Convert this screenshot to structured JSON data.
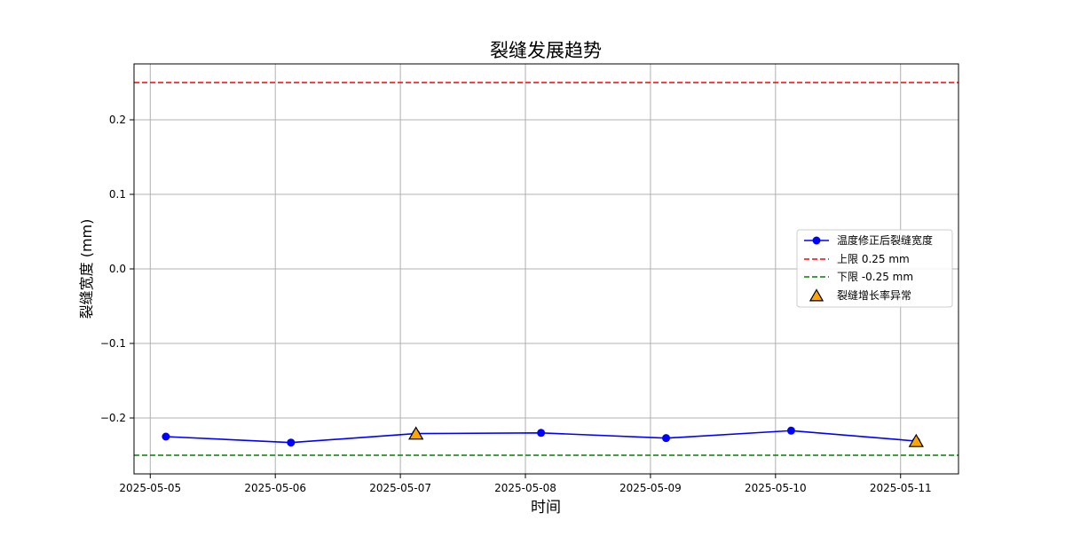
{
  "chart_data": {
    "type": "line",
    "title": "裂缝发展趋势",
    "xlabel": "时间",
    "ylabel": "裂缝宽度 (mm)",
    "xlim": [
      "2025-05-04 20:53",
      "2025-05-11 11:07"
    ],
    "ylim": [
      -0.275,
      0.275
    ],
    "x_ticks": [
      "2025-05-05",
      "2025-05-06",
      "2025-05-07",
      "2025-05-08",
      "2025-05-09",
      "2025-05-10",
      "2025-05-11"
    ],
    "y_ticks": [
      0.2,
      0.1,
      0.0,
      -0.1,
      -0.2
    ],
    "y_tick_labels": [
      "0.2",
      "0.1",
      "0.0",
      "−0.1",
      "−0.2"
    ],
    "grid": true,
    "legend_position": "right",
    "series": [
      {
        "name": "温度修正后裂缝宽度",
        "color": "#0000ff",
        "marker": "circle",
        "x": [
          "2025-05-05 03:00",
          "2025-05-06 03:00",
          "2025-05-07 03:00",
          "2025-05-08 03:00",
          "2025-05-09 03:00",
          "2025-05-10 03:00",
          "2025-05-11 03:00"
        ],
        "values": [
          -0.225,
          -0.233,
          -0.221,
          -0.22,
          -0.227,
          -0.217,
          -0.231
        ]
      }
    ],
    "reference_lines": [
      {
        "name": "上限 0.25 mm",
        "value": 0.25,
        "color": "#ff0000",
        "style": "dashed"
      },
      {
        "name": "下限 -0.25 mm",
        "value": -0.25,
        "color": "#008000",
        "style": "dashed"
      }
    ],
    "anomalies": {
      "name": "裂缝增长率异常",
      "color": "#ffa500",
      "edge_color": "#000000",
      "marker": "triangle",
      "x": [
        "2025-05-07 03:00",
        "2025-05-11 03:00"
      ],
      "values": [
        -0.221,
        -0.231
      ]
    }
  }
}
